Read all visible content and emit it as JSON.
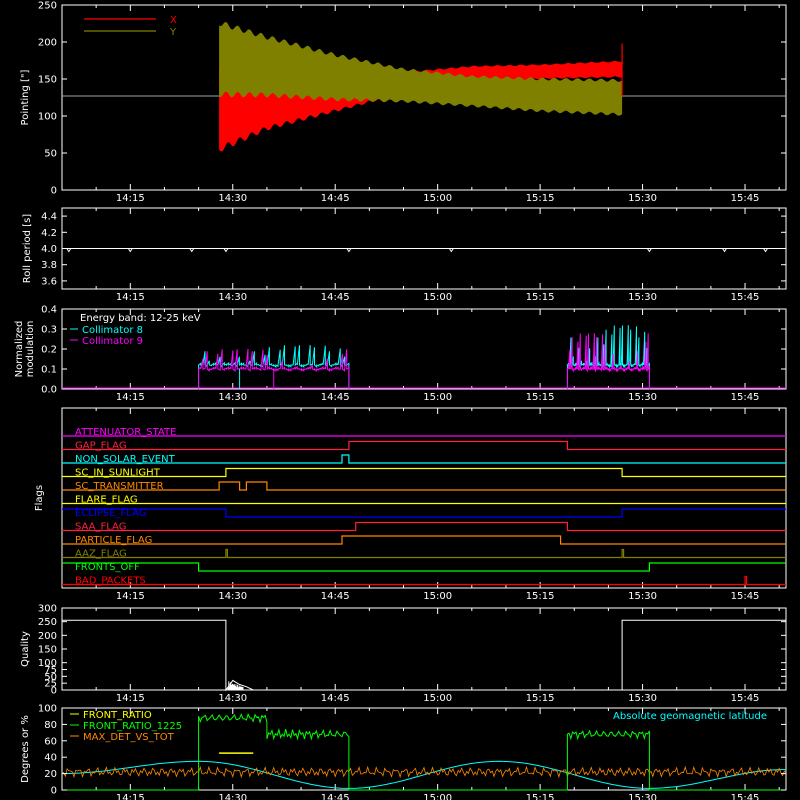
{
  "time_axis": {
    "start": "14:05",
    "end": "15:51",
    "tick_labels": [
      "14:15",
      "14:30",
      "14:45",
      "15:00",
      "15:15",
      "15:30",
      "15:45"
    ]
  },
  "colors": {
    "background": "#000000",
    "axes": "#ffffff",
    "x_pointing": "#ff0000",
    "y_pointing": "#808000",
    "collimator_8": "#00ffff",
    "collimator_9": "#ff00ff",
    "front_ratio": "#ffff00",
    "front_ratio_1225": "#00ff00",
    "max_det_vs_tot": "#ff8800",
    "geomag_latitude": "#00ffff"
  },
  "chart_data": [
    {
      "type": "line",
      "panel": "pointing",
      "ylabel": "Pointing [\"]",
      "ylim": [
        0,
        250
      ],
      "yticks": [
        "0",
        "50",
        "100",
        "150",
        "200",
        "250"
      ],
      "legend": [
        "X",
        "Y"
      ],
      "legend_placement": "top-left",
      "data_start": "14:28",
      "data_end": "15:27",
      "series": [
        {
          "name": "X",
          "envelope": [
            {
              "t": "14:28",
              "min": 50,
              "max": 170
            },
            {
              "t": "14:35",
              "min": 80,
              "max": 165
            },
            {
              "t": "14:45",
              "min": 105,
              "max": 158
            },
            {
              "t": "14:55",
              "min": 130,
              "max": 160
            },
            {
              "t": "15:05",
              "min": 145,
              "max": 168
            },
            {
              "t": "15:15",
              "min": 150,
              "max": 170
            },
            {
              "t": "15:27",
              "min": 152,
              "max": 175
            }
          ]
        },
        {
          "name": "Y",
          "envelope": [
            {
              "t": "14:28",
              "min": 125,
              "max": 230
            },
            {
              "t": "14:35",
              "min": 125,
              "max": 210
            },
            {
              "t": "14:45",
              "min": 120,
              "max": 185
            },
            {
              "t": "14:55",
              "min": 118,
              "max": 165
            },
            {
              "t": "15:05",
              "min": 112,
              "max": 155
            },
            {
              "t": "15:15",
              "min": 105,
              "max": 152
            },
            {
              "t": "15:27",
              "min": 100,
              "max": 150
            }
          ]
        }
      ],
      "baseline": 127,
      "spike": {
        "t": "15:27",
        "max": 198
      }
    },
    {
      "type": "line",
      "panel": "roll_period",
      "ylabel": "Roll period [s]",
      "ylim": [
        3.5,
        4.5
      ],
      "yticks": [
        "3.6",
        "3.8",
        "4.0",
        "4.2",
        "4.4"
      ],
      "values": [
        {
          "t": "14:05",
          "y": 4.0
        },
        {
          "t": "15:51",
          "y": 4.0
        }
      ],
      "dips": [
        "14:06",
        "14:15",
        "14:24",
        "14:29",
        "14:47",
        "15:02",
        "15:31",
        "15:42",
        "15:48"
      ]
    },
    {
      "type": "line",
      "panel": "modulation",
      "ylabel": "Normalized modulation",
      "ylim": [
        0,
        0.4
      ],
      "yticks": [
        "0.0",
        "0.1",
        "0.2",
        "0.3",
        "0.4"
      ],
      "annotations": [
        "Energy band: 12-25 keV"
      ],
      "series": [
        {
          "name": "Collimator 8",
          "segments": [
            {
              "start": "14:25",
              "end": "14:47",
              "level": 0.12,
              "peak": 0.22
            },
            {
              "start": "15:19",
              "end": "15:31",
              "level": 0.12,
              "peak": 0.32
            }
          ]
        },
        {
          "name": "Collimator 9",
          "segments": [
            {
              "start": "14:25",
              "end": "14:47",
              "level": 0.1,
              "peak": 0.2
            },
            {
              "start": "15:19",
              "end": "15:31",
              "level": 0.1,
              "peak": 0.28
            }
          ]
        }
      ],
      "dropouts": [
        {
          "t": "14:31",
          "series": "Collimator 8"
        },
        {
          "t": "14:36",
          "series": "Collimator 9"
        }
      ]
    },
    {
      "type": "step",
      "panel": "flags",
      "ylabel": "Flags",
      "flags": [
        {
          "name": "ATTENUATOR_STATE",
          "color": "#ff00ff",
          "highs": []
        },
        {
          "name": "GAP_FLAG",
          "color": "#ff2040",
          "highs": [
            {
              "start": "14:47",
              "end": "15:19"
            }
          ]
        },
        {
          "name": "NON_SOLAR_EVENT",
          "color": "#00ffff",
          "highs": [
            {
              "start": "14:46",
              "end": "14:47"
            }
          ]
        },
        {
          "name": "SC_IN_SUNLIGHT",
          "color": "#ffff00",
          "highs": [
            {
              "start": "14:29",
              "end": "15:27"
            }
          ]
        },
        {
          "name": "SC_TRANSMITTER",
          "color": "#ff8800",
          "highs": [
            {
              "start": "14:28",
              "end": "14:31"
            },
            {
              "start": "14:32",
              "end": "14:35"
            }
          ]
        },
        {
          "name": "FLARE_FLAG",
          "color": "#ffff00",
          "highs": []
        },
        {
          "name": "ECLIPSE_FLAG",
          "color": "#0000ff",
          "highs": [
            {
              "start": "14:05",
              "end": "14:29"
            },
            {
              "start": "15:27",
              "end": "15:51"
            }
          ]
        },
        {
          "name": "SAA_FLAG",
          "color": "#ff2040",
          "highs": [
            {
              "start": "14:48",
              "end": "15:19"
            }
          ]
        },
        {
          "name": "PARTICLE_FLAG",
          "color": "#ff8800",
          "highs": [
            {
              "start": "14:46",
              "end": "15:18"
            }
          ]
        },
        {
          "name": "AAZ_FLAG",
          "color": "#808000",
          "highs": [
            {
              "start": "14:29",
              "end": "14:29"
            },
            {
              "start": "15:27",
              "end": "15:27"
            }
          ]
        },
        {
          "name": "FRONTS_OFF",
          "color": "#00ff00",
          "highs": [
            {
              "start": "14:05",
              "end": "14:25"
            },
            {
              "start": "15:31",
              "end": "15:51"
            }
          ]
        },
        {
          "name": "BAD_PACKETS",
          "color": "#ff0000",
          "highs": [
            {
              "start": "15:45",
              "end": "15:45"
            }
          ]
        }
      ]
    },
    {
      "type": "line",
      "panel": "quality",
      "ylabel": "Quality",
      "ylim": [
        0,
        300
      ],
      "yticks": [
        "0",
        "25",
        "50",
        "75",
        "100",
        "150",
        "200",
        "250",
        "300"
      ],
      "values": [
        {
          "t": "14:05",
          "y": 255
        },
        {
          "t": "14:29",
          "y": 255
        },
        {
          "t": "14:29",
          "y": 0
        },
        {
          "t": "14:30",
          "y": 35
        },
        {
          "t": "14:31",
          "y": 20
        },
        {
          "t": "14:32",
          "y": 12
        },
        {
          "t": "14:33",
          "y": 0
        },
        {
          "t": "15:27",
          "y": 0
        },
        {
          "t": "15:27",
          "y": 255
        },
        {
          "t": "15:51",
          "y": 255
        }
      ]
    },
    {
      "type": "line",
      "panel": "ratios",
      "ylabel": "Degrees or %",
      "ylim": [
        0,
        100
      ],
      "yticks": [
        "0",
        "20",
        "40",
        "60",
        "80",
        "100"
      ],
      "annotations": [
        "Absolute geomagnetic latitude"
      ],
      "series": [
        {
          "name": "FRONT_RATIO",
          "segments": [
            {
              "start": "14:28",
              "end": "14:33",
              "level": 45
            }
          ]
        },
        {
          "name": "FRONT_RATIO_1225",
          "segments": [
            {
              "start": "14:05",
              "end": "14:25",
              "level": 0
            },
            {
              "start": "14:25",
              "end": "14:35",
              "level": 88
            },
            {
              "start": "14:35",
              "end": "14:47",
              "level": 68
            },
            {
              "start": "14:47",
              "end": "15:19",
              "level": 0
            },
            {
              "start": "15:19",
              "end": "15:31",
              "level": 68
            },
            {
              "start": "15:31",
              "end": "15:51",
              "level": 0
            }
          ]
        },
        {
          "name": "MAX_DET_VS_TOT",
          "level": 22
        },
        {
          "name": "Absolute geomagnetic latitude",
          "points": [
            {
              "t": "14:05",
              "y": 20
            },
            {
              "t": "14:25",
              "y": 35
            },
            {
              "t": "14:47",
              "y": 2
            },
            {
              "t": "15:09",
              "y": 35
            },
            {
              "t": "15:31",
              "y": 2
            },
            {
              "t": "15:51",
              "y": 25
            }
          ]
        }
      ]
    }
  ]
}
